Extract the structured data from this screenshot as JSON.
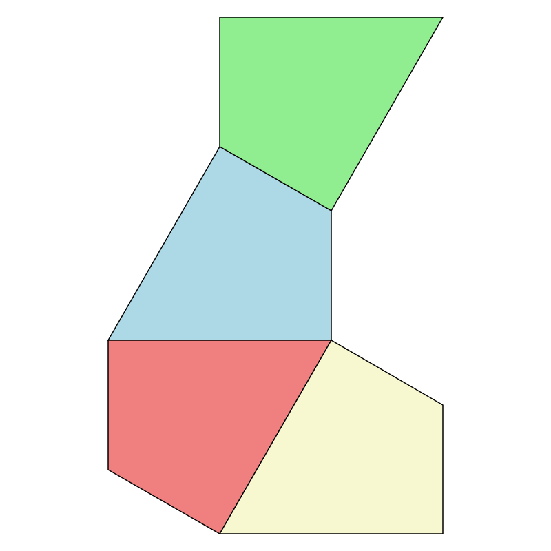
{
  "diagram": {
    "type": "polygon-tiling",
    "stroke_color": "#000000",
    "background": "#ffffff",
    "tiles": [
      {
        "id": "green-tile",
        "color": "#90ee90"
      },
      {
        "id": "blue-tile",
        "color": "#add8e6"
      },
      {
        "id": "red-tile",
        "color": "#f08080"
      },
      {
        "id": "yellow-tile",
        "color": "#f8f8d0"
      }
    ]
  }
}
